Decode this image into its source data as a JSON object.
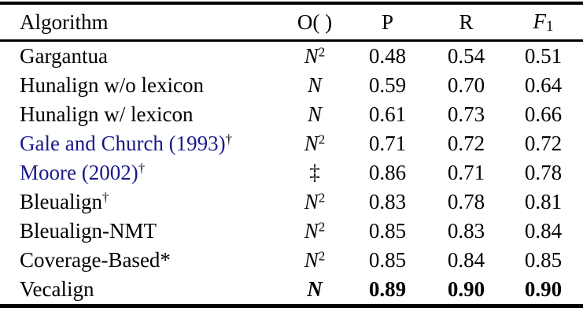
{
  "colors": {
    "citation_link": "#1a1a8c",
    "text": "#000000",
    "background": "#ffffff"
  },
  "header": {
    "algorithm": "Algorithm",
    "complexity": "O( )",
    "precision": "P",
    "recall": "R",
    "f_base": "F",
    "f_sub": "1"
  },
  "rows": [
    {
      "name": "Gargantua",
      "citation": false,
      "marker": "",
      "complexity": "N",
      "complexity_sup": "2",
      "complexity_math": true,
      "p": "0.48",
      "r": "0.54",
      "f1": "0.51",
      "bold_values": false
    },
    {
      "name": "Hunalign w/o lexicon",
      "citation": false,
      "marker": "",
      "complexity": "N",
      "complexity_sup": "",
      "complexity_math": true,
      "p": "0.59",
      "r": "0.70",
      "f1": "0.64",
      "bold_values": false
    },
    {
      "name": "Hunalign w/ lexicon",
      "citation": false,
      "marker": "",
      "complexity": "N",
      "complexity_sup": "",
      "complexity_math": true,
      "p": "0.61",
      "r": "0.73",
      "f1": "0.66",
      "bold_values": false
    },
    {
      "name": "Gale and Church (1993)",
      "citation": true,
      "marker": "†",
      "complexity": "N",
      "complexity_sup": "2",
      "complexity_math": true,
      "p": "0.71",
      "r": "0.72",
      "f1": "0.72",
      "bold_values": false
    },
    {
      "name": "Moore (2002)",
      "citation": true,
      "marker": "†",
      "complexity": "‡",
      "complexity_sup": "",
      "complexity_math": false,
      "p": "0.86",
      "r": "0.71",
      "f1": "0.78",
      "bold_values": false
    },
    {
      "name": "Bleualign",
      "citation": false,
      "marker": "†",
      "complexity": "N",
      "complexity_sup": "2",
      "complexity_math": true,
      "p": "0.83",
      "r": "0.78",
      "f1": "0.81",
      "bold_values": false
    },
    {
      "name": "Bleualign-NMT",
      "citation": false,
      "marker": "",
      "complexity": "N",
      "complexity_sup": "2",
      "complexity_math": true,
      "p": "0.85",
      "r": "0.83",
      "f1": "0.84",
      "bold_values": false
    },
    {
      "name": "Coverage-Based*",
      "citation": false,
      "marker": "",
      "complexity": "N",
      "complexity_sup": "2",
      "complexity_math": true,
      "p": "0.85",
      "r": "0.84",
      "f1": "0.85",
      "bold_values": false
    },
    {
      "name": "Vecalign",
      "citation": false,
      "marker": "",
      "complexity": "N",
      "complexity_sup": "",
      "complexity_math": true,
      "p": "0.89",
      "r": "0.90",
      "f1": "0.90",
      "bold_values": true
    }
  ]
}
